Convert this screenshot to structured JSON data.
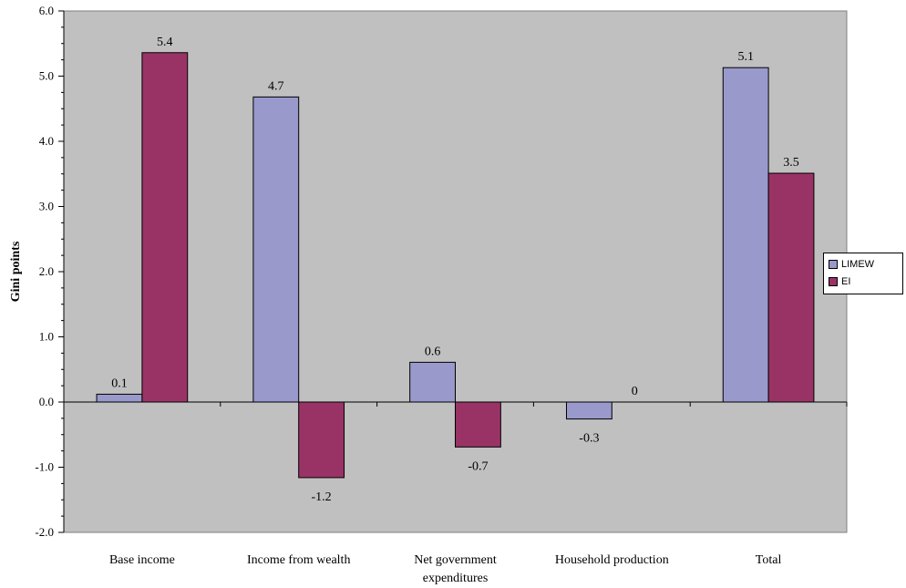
{
  "chart_data": {
    "type": "bar",
    "title": "",
    "xlabel": "",
    "ylabel": "Gini points",
    "ylim": [
      -2.0,
      6.0
    ],
    "yticks": [
      "-2.0",
      "-1.0",
      "0.0",
      "1.0",
      "2.0",
      "3.0",
      "4.0",
      "5.0",
      "6.0"
    ],
    "categories": [
      [
        "Base income"
      ],
      [
        "Income from wealth"
      ],
      [
        "Net government",
        "expenditures"
      ],
      [
        "Household production"
      ],
      [
        "Total"
      ]
    ],
    "series": [
      {
        "name": "LIMEW",
        "color": "#9999cc",
        "values": [
          0.12,
          4.68,
          0.61,
          -0.26,
          5.13
        ],
        "labels": [
          "0.1",
          "4.7",
          "0.6",
          "-0.3",
          "5.1"
        ]
      },
      {
        "name": "EI",
        "color": "#993366",
        "values": [
          5.36,
          -1.16,
          -0.69,
          0.0,
          3.51
        ],
        "labels": [
          "5.4",
          "-1.2",
          "-0.7",
          "0",
          "3.5"
        ]
      }
    ],
    "plot_background": "#c0c0c0",
    "grid": false,
    "legend_position": "right"
  }
}
